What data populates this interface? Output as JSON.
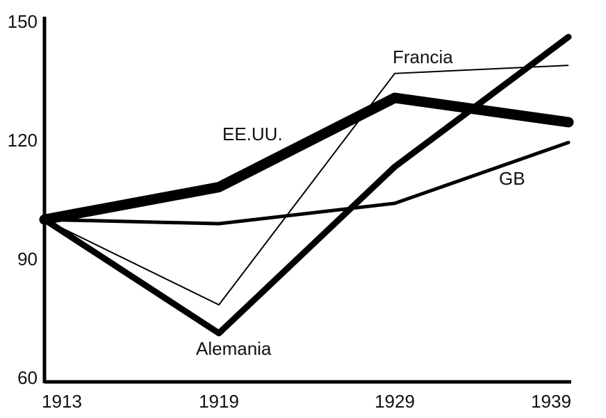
{
  "chart_data": {
    "type": "line",
    "title": "",
    "xlabel": "",
    "ylabel": "",
    "x": [
      "1913",
      "1919",
      "1929",
      "1939"
    ],
    "ylim": [
      60,
      150
    ],
    "y_ticks": [
      60,
      90,
      120,
      150
    ],
    "grid": false,
    "legend": "none",
    "series": [
      {
        "name": "EE.UU.",
        "values": [
          100,
          108,
          130,
          124
        ],
        "color": "#000000",
        "weight": "heaviest"
      },
      {
        "name": "Alemania",
        "values": [
          100,
          72,
          113,
          145
        ],
        "color": "#000000",
        "weight": "heavy"
      },
      {
        "name": "GB",
        "values": [
          100,
          99,
          104,
          119
        ],
        "color": "#000000",
        "weight": "medium"
      },
      {
        "name": "Francia",
        "values": [
          100,
          79,
          136,
          138
        ],
        "color": "#000000",
        "weight": "thin"
      }
    ]
  }
}
